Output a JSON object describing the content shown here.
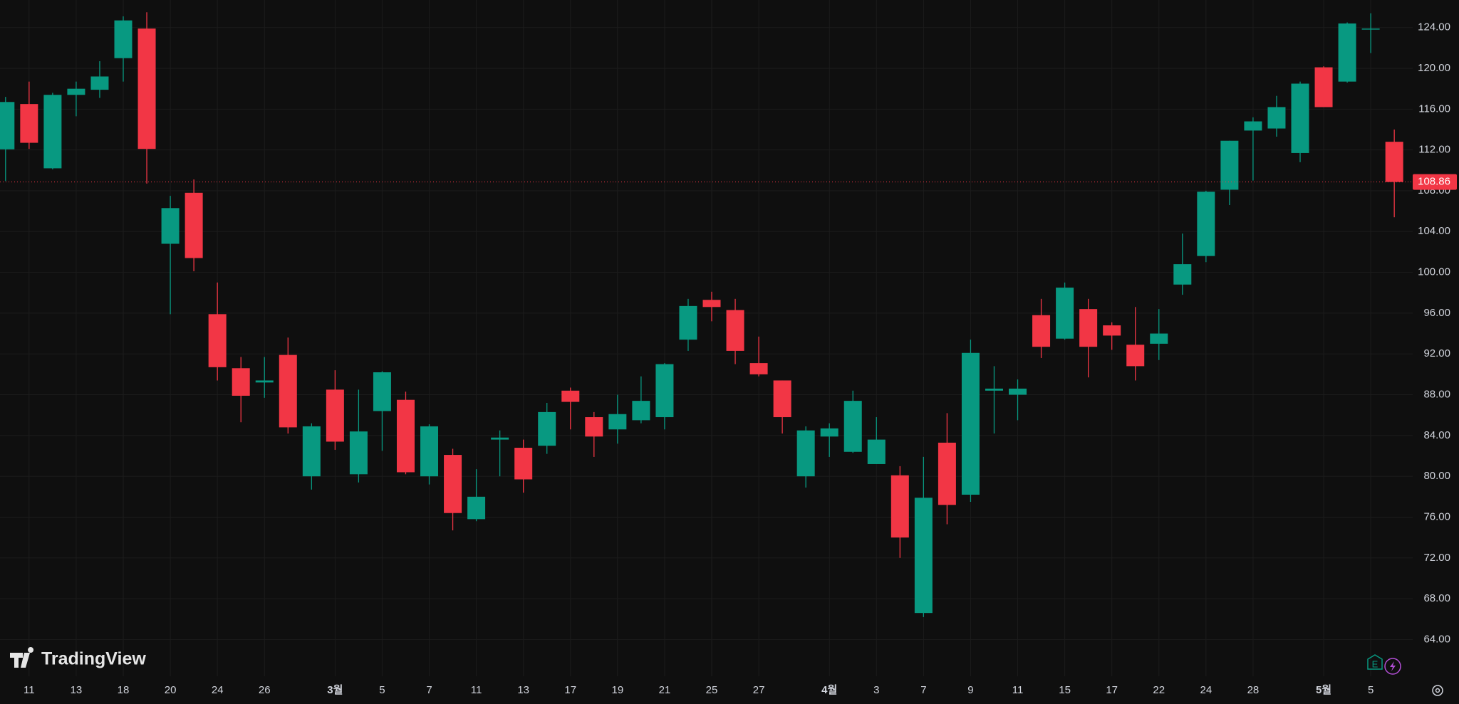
{
  "watermark": "TradingView",
  "earnings_icon": "E",
  "chart_data": {
    "type": "candlestick",
    "categories": [
      null,
      "11",
      null,
      "13",
      null,
      "18",
      null,
      "20",
      null,
      "24",
      null,
      "26",
      null,
      null,
      "3월",
      null,
      "5",
      null,
      "7",
      null,
      "11",
      null,
      "13",
      null,
      "17",
      null,
      "19",
      null,
      "21",
      null,
      "25",
      null,
      "27",
      null,
      null,
      "4월",
      null,
      "3",
      null,
      "7",
      null,
      "9",
      null,
      "11",
      null,
      "15",
      null,
      "17",
      null,
      "22",
      null,
      "24",
      null,
      "28",
      null,
      null,
      "5월",
      null,
      "5",
      null
    ],
    "open": [
      112.06,
      116.5,
      110.2,
      117.4,
      117.9,
      121.0,
      123.9,
      102.8,
      107.8,
      95.9,
      90.6,
      89.2,
      91.9,
      80.0,
      88.5,
      80.2,
      86.4,
      87.5,
      80.0,
      82.1,
      75.8,
      83.6,
      82.8,
      83.0,
      88.4,
      85.8,
      84.6,
      85.5,
      85.8,
      93.4,
      97.3,
      96.3,
      91.1,
      89.4,
      80.0,
      83.9,
      82.4,
      81.2,
      80.1,
      66.6,
      83.3,
      78.2,
      88.4,
      88.0,
      95.8,
      93.5,
      96.4,
      94.8,
      92.9,
      93.0,
      98.8,
      101.6,
      108.1,
      113.9,
      114.1,
      111.7,
      120.1,
      118.7,
      123.8,
      112.8
    ],
    "high": [
      117.2,
      118.7,
      117.6,
      118.7,
      120.7,
      125.1,
      125.5,
      107.5,
      109.1,
      99.0,
      91.7,
      91.7,
      93.6,
      85.2,
      90.4,
      88.5,
      90.3,
      88.3,
      85.1,
      82.7,
      80.7,
      84.5,
      83.6,
      87.2,
      88.7,
      86.3,
      88.0,
      89.8,
      91.1,
      97.4,
      98.1,
      97.4,
      93.7,
      89.4,
      84.9,
      85.2,
      88.4,
      85.8,
      81.0,
      81.9,
      86.2,
      93.4,
      90.8,
      89.5,
      97.4,
      99.0,
      97.4,
      95.1,
      96.6,
      96.4,
      103.8,
      108.0,
      112.9,
      115.2,
      117.3,
      118.7,
      120.2,
      124.5,
      125.4,
      114.0
    ],
    "low": [
      108.95,
      112.1,
      110.1,
      115.3,
      117.1,
      118.7,
      108.7,
      95.9,
      100.1,
      89.4,
      85.3,
      87.7,
      84.2,
      78.7,
      82.6,
      79.4,
      82.5,
      80.2,
      79.2,
      74.7,
      75.6,
      80.0,
      78.4,
      82.2,
      84.6,
      81.9,
      83.2,
      85.2,
      84.6,
      92.3,
      95.2,
      91.0,
      89.8,
      84.2,
      78.9,
      81.9,
      82.3,
      81.2,
      72.0,
      66.2,
      75.3,
      77.5,
      84.2,
      85.5,
      91.6,
      93.4,
      89.7,
      92.4,
      89.4,
      91.4,
      97.8,
      101.0,
      106.6,
      109.0,
      113.3,
      110.8,
      116.2,
      118.6,
      121.5,
      105.4
    ],
    "close": [
      116.7,
      112.7,
      117.4,
      118.0,
      119.2,
      124.7,
      112.1,
      106.3,
      101.4,
      90.7,
      87.9,
      89.4,
      84.8,
      84.9,
      83.4,
      84.4,
      90.2,
      80.4,
      84.9,
      76.4,
      78.0,
      83.8,
      79.7,
      86.3,
      87.3,
      83.9,
      86.1,
      87.4,
      91.0,
      96.7,
      96.6,
      92.3,
      90.0,
      85.8,
      84.5,
      84.7,
      87.4,
      83.6,
      74.0,
      77.9,
      77.2,
      92.1,
      88.6,
      88.6,
      92.7,
      98.5,
      92.7,
      93.8,
      90.8,
      94.0,
      100.8,
      107.9,
      112.9,
      114.8,
      116.2,
      118.5,
      116.2,
      124.4,
      123.9,
      108.86
    ],
    "up_color": "#089981",
    "down_color": "#f23645",
    "last_price": 108.86,
    "ylim": [
      60.4,
      126.7
    ],
    "yticks": [
      {
        "value": 64,
        "label": "64.00"
      },
      {
        "value": 68,
        "label": "68.00"
      },
      {
        "value": 72,
        "label": "72.00"
      },
      {
        "value": 76,
        "label": "76.00"
      },
      {
        "value": 80,
        "label": "80.00"
      },
      {
        "value": 84,
        "label": "84.00"
      },
      {
        "value": 88,
        "label": "88.00"
      },
      {
        "value": 92,
        "label": "92.00"
      },
      {
        "value": 96,
        "label": "96.00"
      },
      {
        "value": 100,
        "label": "100.00"
      },
      {
        "value": 104,
        "label": "104.00"
      },
      {
        "value": 108,
        "label": "108.00"
      },
      {
        "value": 112,
        "label": "112.00"
      },
      {
        "value": 116,
        "label": "116.00"
      },
      {
        "value": 120,
        "label": "120.00"
      },
      {
        "value": 124,
        "label": "124.00"
      }
    ],
    "grid": true
  }
}
